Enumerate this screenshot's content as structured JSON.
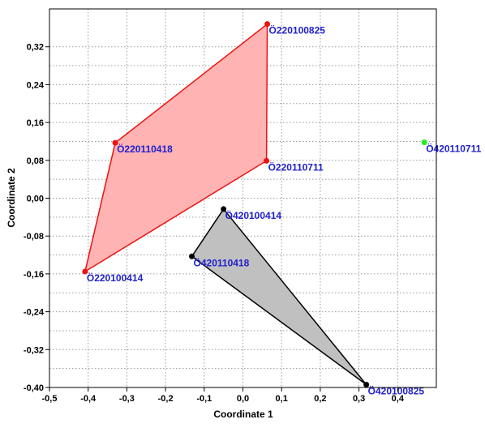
{
  "chart_data": {
    "type": "scatter",
    "xlabel": "Coordinate 1",
    "ylabel": "Coordinate 2",
    "xlim": [
      -0.5,
      0.5
    ],
    "ylim": [
      -0.4,
      0.4
    ],
    "x_ticks": [
      "-0,5",
      "-0,4",
      "-0,3",
      "-0,2",
      "-0,1",
      "0,0",
      "0,1",
      "0,2",
      "0,3",
      "0,4"
    ],
    "x_tick_values": [
      -0.5,
      -0.4,
      -0.3,
      -0.2,
      -0.1,
      0.0,
      0.1,
      0.2,
      0.3,
      0.4
    ],
    "y_ticks": [
      "0,32",
      "0,24",
      "0,16",
      "0,08",
      "0,00",
      "-0,08",
      "-0,16",
      "-0,24",
      "-0,32",
      "-0,40"
    ],
    "y_tick_values": [
      0.32,
      0.24,
      0.16,
      0.08,
      0.0,
      -0.08,
      -0.16,
      -0.24,
      -0.32,
      -0.4
    ],
    "grid": true,
    "label_color": "#2020cc",
    "groups": [
      {
        "color": "#ee1111",
        "fill": "#ffb3b3",
        "hull": true,
        "points": [
          {
            "label": "Ö220100825",
            "x": 0.063,
            "y": 0.368
          },
          {
            "label": "Ö220110418",
            "x": -0.33,
            "y": 0.117
          },
          {
            "label": "Ö220110711",
            "x": 0.061,
            "y": 0.079
          },
          {
            "label": "Ö220100414",
            "x": -0.408,
            "y": -0.155
          }
        ],
        "hull_order": [
          0,
          2,
          3,
          1
        ]
      },
      {
        "color": "#000000",
        "fill": "#c0c0c0",
        "hull": true,
        "points": [
          {
            "label": "Ö420100414",
            "x": -0.05,
            "y": -0.023
          },
          {
            "label": "Ö420110418",
            "x": -0.132,
            "y": -0.123
          },
          {
            "label": "Ö420100825",
            "x": 0.319,
            "y": -0.394
          }
        ],
        "hull_order": [
          0,
          2,
          1
        ]
      },
      {
        "color": "#22ee22",
        "fill": "none",
        "hull": false,
        "points": [
          {
            "label": "Ö420110711",
            "x": 0.469,
            "y": 0.118
          }
        ],
        "hull_order": []
      }
    ]
  }
}
